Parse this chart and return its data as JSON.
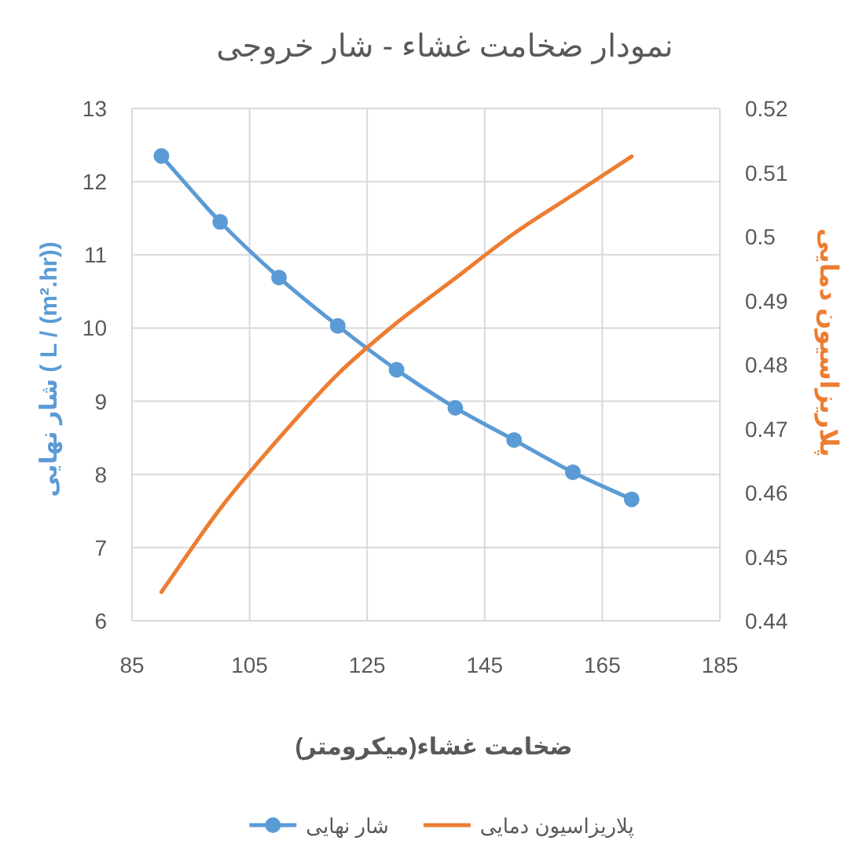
{
  "chart_data": {
    "type": "line",
    "title": "نمودار ضخامت غشاء - شار خروجی",
    "xlabel": "ضخامت غشاء(میکرومتر)",
    "ylabel": "شار نهایی ( L / (m².hr))",
    "y2label": "پلاریزاسیون دمایی",
    "x": [
      90,
      100,
      110,
      120,
      130,
      140,
      150,
      160,
      170
    ],
    "series": [
      {
        "name": "شار نهایی",
        "color": "#5b9bd5",
        "marker": "circle",
        "values": [
          12.35,
          11.45,
          10.69,
          10.03,
          9.43,
          8.91,
          8.47,
          8.03,
          7.66
        ]
      },
      {
        "name": "پلاریزاسیون دمایی",
        "color": "#ed7d31",
        "marker": "none",
        "axis": "y2",
        "values": [
          0.4445,
          0.4575,
          0.4685,
          0.4785,
          0.4865,
          0.4935,
          0.5005,
          0.5065,
          0.5125
        ]
      }
    ],
    "xlim": [
      85,
      185
    ],
    "xticks": [
      85,
      105,
      125,
      145,
      165,
      185
    ],
    "ylim": [
      6,
      13
    ],
    "yticks": [
      6,
      7,
      8,
      9,
      10,
      11,
      12,
      13
    ],
    "y2lim": [
      0.44,
      0.52
    ],
    "y2ticks": [
      0.44,
      0.45,
      0.46,
      0.47,
      0.48,
      0.49,
      0.5,
      0.51,
      0.52
    ],
    "grid": true,
    "legend": "bottom"
  }
}
